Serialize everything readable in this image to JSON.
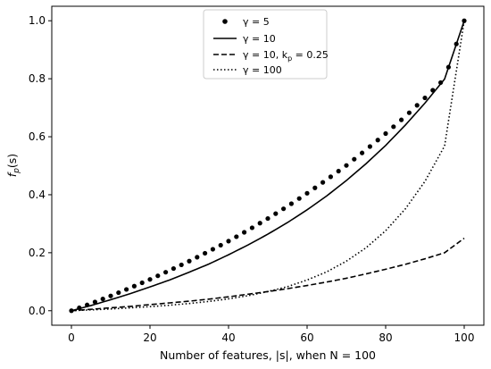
{
  "chart_data": {
    "type": "line",
    "title": "",
    "xlabel": "Number of features, |s|, when N = 100",
    "ylabel": "f_p(s)",
    "xlim": [
      -5,
      105
    ],
    "ylim": [
      -0.05,
      1.05
    ],
    "xticks": [
      0,
      20,
      40,
      60,
      80,
      100
    ],
    "yticks": [
      0.0,
      0.2,
      0.4,
      0.6,
      0.8,
      1.0
    ],
    "xtick_labels": [
      "0",
      "20",
      "40",
      "60",
      "80",
      "100"
    ],
    "ytick_labels": [
      "0.0",
      "0.2",
      "0.4",
      "0.6",
      "0.8",
      "1.0"
    ],
    "grid": false,
    "legend_position": "top-center",
    "series": [
      {
        "name": "γ = 5",
        "style": "dots",
        "x": [
          0,
          5,
          10,
          15,
          20,
          25,
          30,
          35,
          40,
          45,
          50,
          55,
          60,
          65,
          70,
          75,
          80,
          85,
          90,
          95,
          100
        ],
        "y": [
          0.0,
          0.025,
          0.051,
          0.079,
          0.108,
          0.139,
          0.171,
          0.205,
          0.24,
          0.278,
          0.318,
          0.36,
          0.405,
          0.452,
          0.501,
          0.555,
          0.611,
          0.67,
          0.734,
          0.8,
          1.0
        ]
      },
      {
        "name": "γ = 10",
        "style": "solid",
        "x": [
          0,
          5,
          10,
          15,
          20,
          25,
          30,
          35,
          40,
          45,
          50,
          55,
          60,
          65,
          70,
          75,
          80,
          85,
          90,
          95,
          100
        ],
        "y": [
          0.0,
          0.018,
          0.038,
          0.059,
          0.082,
          0.106,
          0.133,
          0.161,
          0.193,
          0.227,
          0.264,
          0.304,
          0.348,
          0.396,
          0.449,
          0.507,
          0.57,
          0.64,
          0.716,
          0.799,
          1.0
        ]
      },
      {
        "name": "γ = 10, k_p = 0.25",
        "style": "dashed",
        "x": [
          0,
          5,
          10,
          15,
          20,
          25,
          30,
          35,
          40,
          45,
          50,
          55,
          60,
          65,
          70,
          75,
          80,
          85,
          90,
          95,
          100
        ],
        "y": [
          0.0,
          0.005,
          0.01,
          0.015,
          0.021,
          0.027,
          0.033,
          0.04,
          0.048,
          0.057,
          0.066,
          0.076,
          0.087,
          0.099,
          0.112,
          0.127,
          0.143,
          0.16,
          0.179,
          0.2,
          0.25
        ]
      },
      {
        "name": "γ = 100",
        "style": "dotted",
        "x": [
          0,
          5,
          10,
          15,
          20,
          25,
          30,
          35,
          40,
          45,
          50,
          55,
          60,
          65,
          70,
          75,
          80,
          85,
          90,
          95,
          100
        ],
        "y": [
          0.0,
          0.003,
          0.006,
          0.01,
          0.014,
          0.019,
          0.025,
          0.032,
          0.041,
          0.052,
          0.066,
          0.083,
          0.106,
          0.134,
          0.171,
          0.217,
          0.276,
          0.351,
          0.446,
          0.568,
          1.0
        ]
      }
    ]
  },
  "legend": {
    "entries": [
      {
        "prefix": "γ = 5",
        "suffix": ""
      },
      {
        "prefix": "γ = 10",
        "suffix": ""
      },
      {
        "prefix": "γ = 10, k",
        "sub": "p",
        "suffix": " = 0.25"
      },
      {
        "prefix": "γ = 100",
        "suffix": ""
      }
    ]
  },
  "labels": {
    "x_main": "Number of features, |s|, when N = 100",
    "y_main": "f",
    "y_sub": "p",
    "y_tail": "(s)"
  }
}
